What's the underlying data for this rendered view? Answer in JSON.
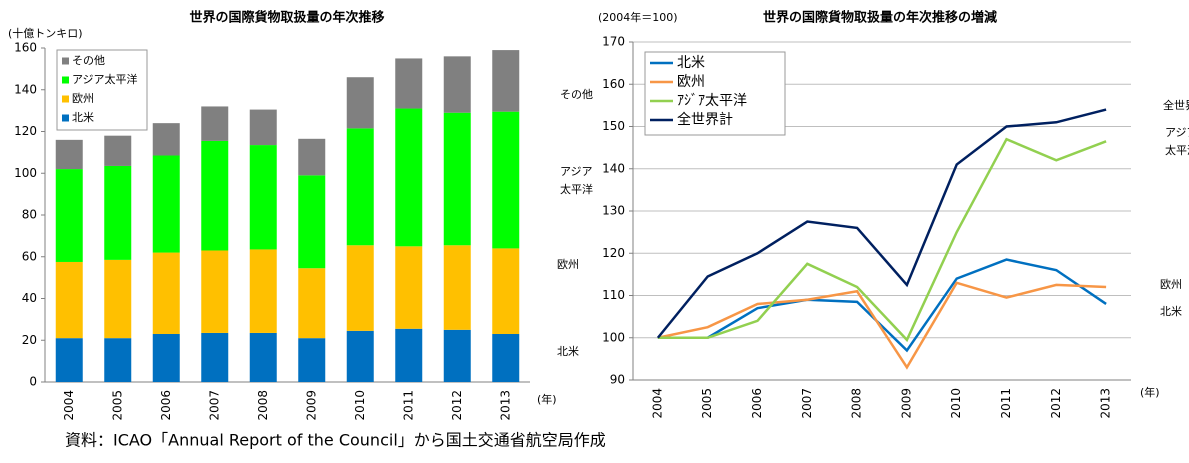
{
  "chart_data": [
    {
      "type": "bar",
      "stacked": true,
      "title": "世界の国際貨物取扱量の年次推移",
      "unit_label": "(十億トンキロ)",
      "x_unit": "(年)",
      "categories": [
        "2004",
        "2005",
        "2006",
        "2007",
        "2008",
        "2009",
        "2010",
        "2011",
        "2012",
        "2013"
      ],
      "series": [
        {
          "name": "北米",
          "color": "#0070c0",
          "values": [
            21,
            21,
            23,
            23.5,
            23.5,
            21,
            24.5,
            25.5,
            25,
            23
          ]
        },
        {
          "name": "欧州",
          "color": "#ffc000",
          "values": [
            36.5,
            37.5,
            39,
            39.5,
            40,
            33.5,
            41,
            39.5,
            40.5,
            41
          ]
        },
        {
          "name": "アジア太平洋",
          "color": "#00ff00",
          "values": [
            44.5,
            45,
            46.5,
            52.5,
            50,
            44.5,
            56,
            66,
            63.5,
            65.5
          ]
        },
        {
          "name": "その他",
          "color": "#808080",
          "values": [
            14,
            14.5,
            15.5,
            16.5,
            17,
            17.5,
            24.5,
            24,
            27,
            29.5
          ]
        }
      ],
      "ylim": [
        0,
        160
      ],
      "yticks": [
        0,
        20,
        40,
        60,
        80,
        100,
        120,
        140,
        160
      ],
      "grid": false,
      "legend": "top-left",
      "annotations": [
        [
          "その他"
        ],
        [
          "アジア",
          "太平洋"
        ],
        [
          "欧州"
        ],
        [
          "北米"
        ]
      ]
    },
    {
      "type": "line",
      "title": "世界の国際貨物取扱量の年次推移の増減",
      "unit_label": "(2004年＝100)",
      "x_unit": "(年)",
      "categories": [
        "2004",
        "2005",
        "2006",
        "2007",
        "2008",
        "2009",
        "2010",
        "2011",
        "2012",
        "2013"
      ],
      "series": [
        {
          "name": "北米",
          "color": "#0070c0",
          "values": [
            100,
            100,
            107,
            109,
            108.5,
            97,
            114,
            118.5,
            116,
            108
          ]
        },
        {
          "name": "欧州",
          "color": "#f79646",
          "values": [
            100,
            102.5,
            108,
            109,
            111,
            93,
            113,
            109.5,
            112.5,
            112
          ]
        },
        {
          "name": "ｱｼﾞｱ太平洋",
          "color": "#92d050",
          "values": [
            100,
            100,
            104,
            117.5,
            112,
            99.5,
            125,
            147,
            142,
            146.5
          ]
        },
        {
          "name": "全世界計",
          "color": "#002060",
          "values": [
            100,
            114.5,
            120,
            127.5,
            126,
            112.5,
            141,
            150,
            151,
            154
          ]
        }
      ],
      "ylim": [
        90,
        170
      ],
      "yticks": [
        90,
        100,
        110,
        120,
        130,
        140,
        150,
        160,
        170
      ],
      "grid": true,
      "legend": "top-left",
      "annotations": [
        [
          "全世界計"
        ],
        [
          "アジア",
          "太平洋"
        ],
        [
          "欧州"
        ],
        [
          "北米"
        ]
      ]
    }
  ],
  "source": "資料：ICAO「Annual Report of the Council」から国土交通省航空局作成"
}
